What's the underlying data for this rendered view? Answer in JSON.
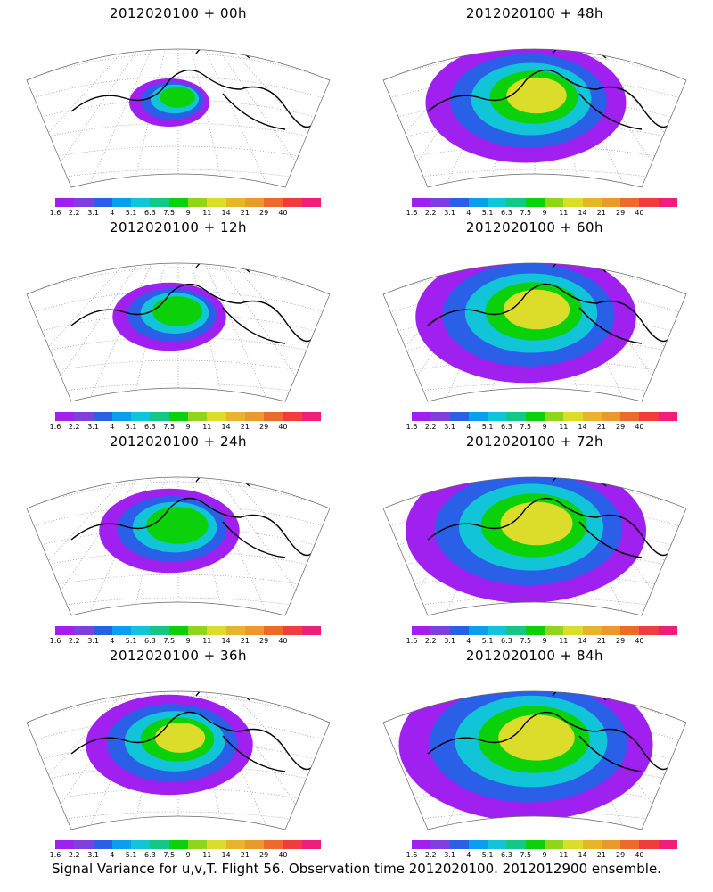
{
  "panels": [
    {
      "title": "2012020100 + 00h",
      "spread": 0.6,
      "intensity": 0.55
    },
    {
      "title": "2012020100 + 48h",
      "spread": 1.5,
      "intensity": 0.75
    },
    {
      "title": "2012020100 + 12h",
      "spread": 0.85,
      "intensity": 0.6
    },
    {
      "title": "2012020100 + 60h",
      "spread": 1.65,
      "intensity": 0.78
    },
    {
      "title": "2012020100 + 24h",
      "spread": 1.05,
      "intensity": 0.65
    },
    {
      "title": "2012020100 + 72h",
      "spread": 1.8,
      "intensity": 0.8
    },
    {
      "title": "2012020100 + 36h",
      "spread": 1.25,
      "intensity": 0.7
    },
    {
      "title": "2012020100 + 84h",
      "spread": 1.9,
      "intensity": 0.82
    }
  ],
  "colorbar": {
    "colors": [
      "#a020f0",
      "#7f3fe0",
      "#2a5fe8",
      "#0a9ef0",
      "#12c4d8",
      "#13c886",
      "#0ad10a",
      "#8fd61a",
      "#dcdc2a",
      "#e6b52a",
      "#ea9a2a",
      "#ee6a2a",
      "#f03c3c",
      "#f01e7a"
    ],
    "labels": [
      "1.6",
      "2.2",
      "3.1",
      "4",
      "5.1",
      "6.3",
      "7.5",
      "9",
      "11",
      "14",
      "21",
      "29",
      "40"
    ]
  },
  "footer": "Signal Variance for u,v,T. Flight 56. Observation time 2012020100. 2012012900 ensemble."
}
